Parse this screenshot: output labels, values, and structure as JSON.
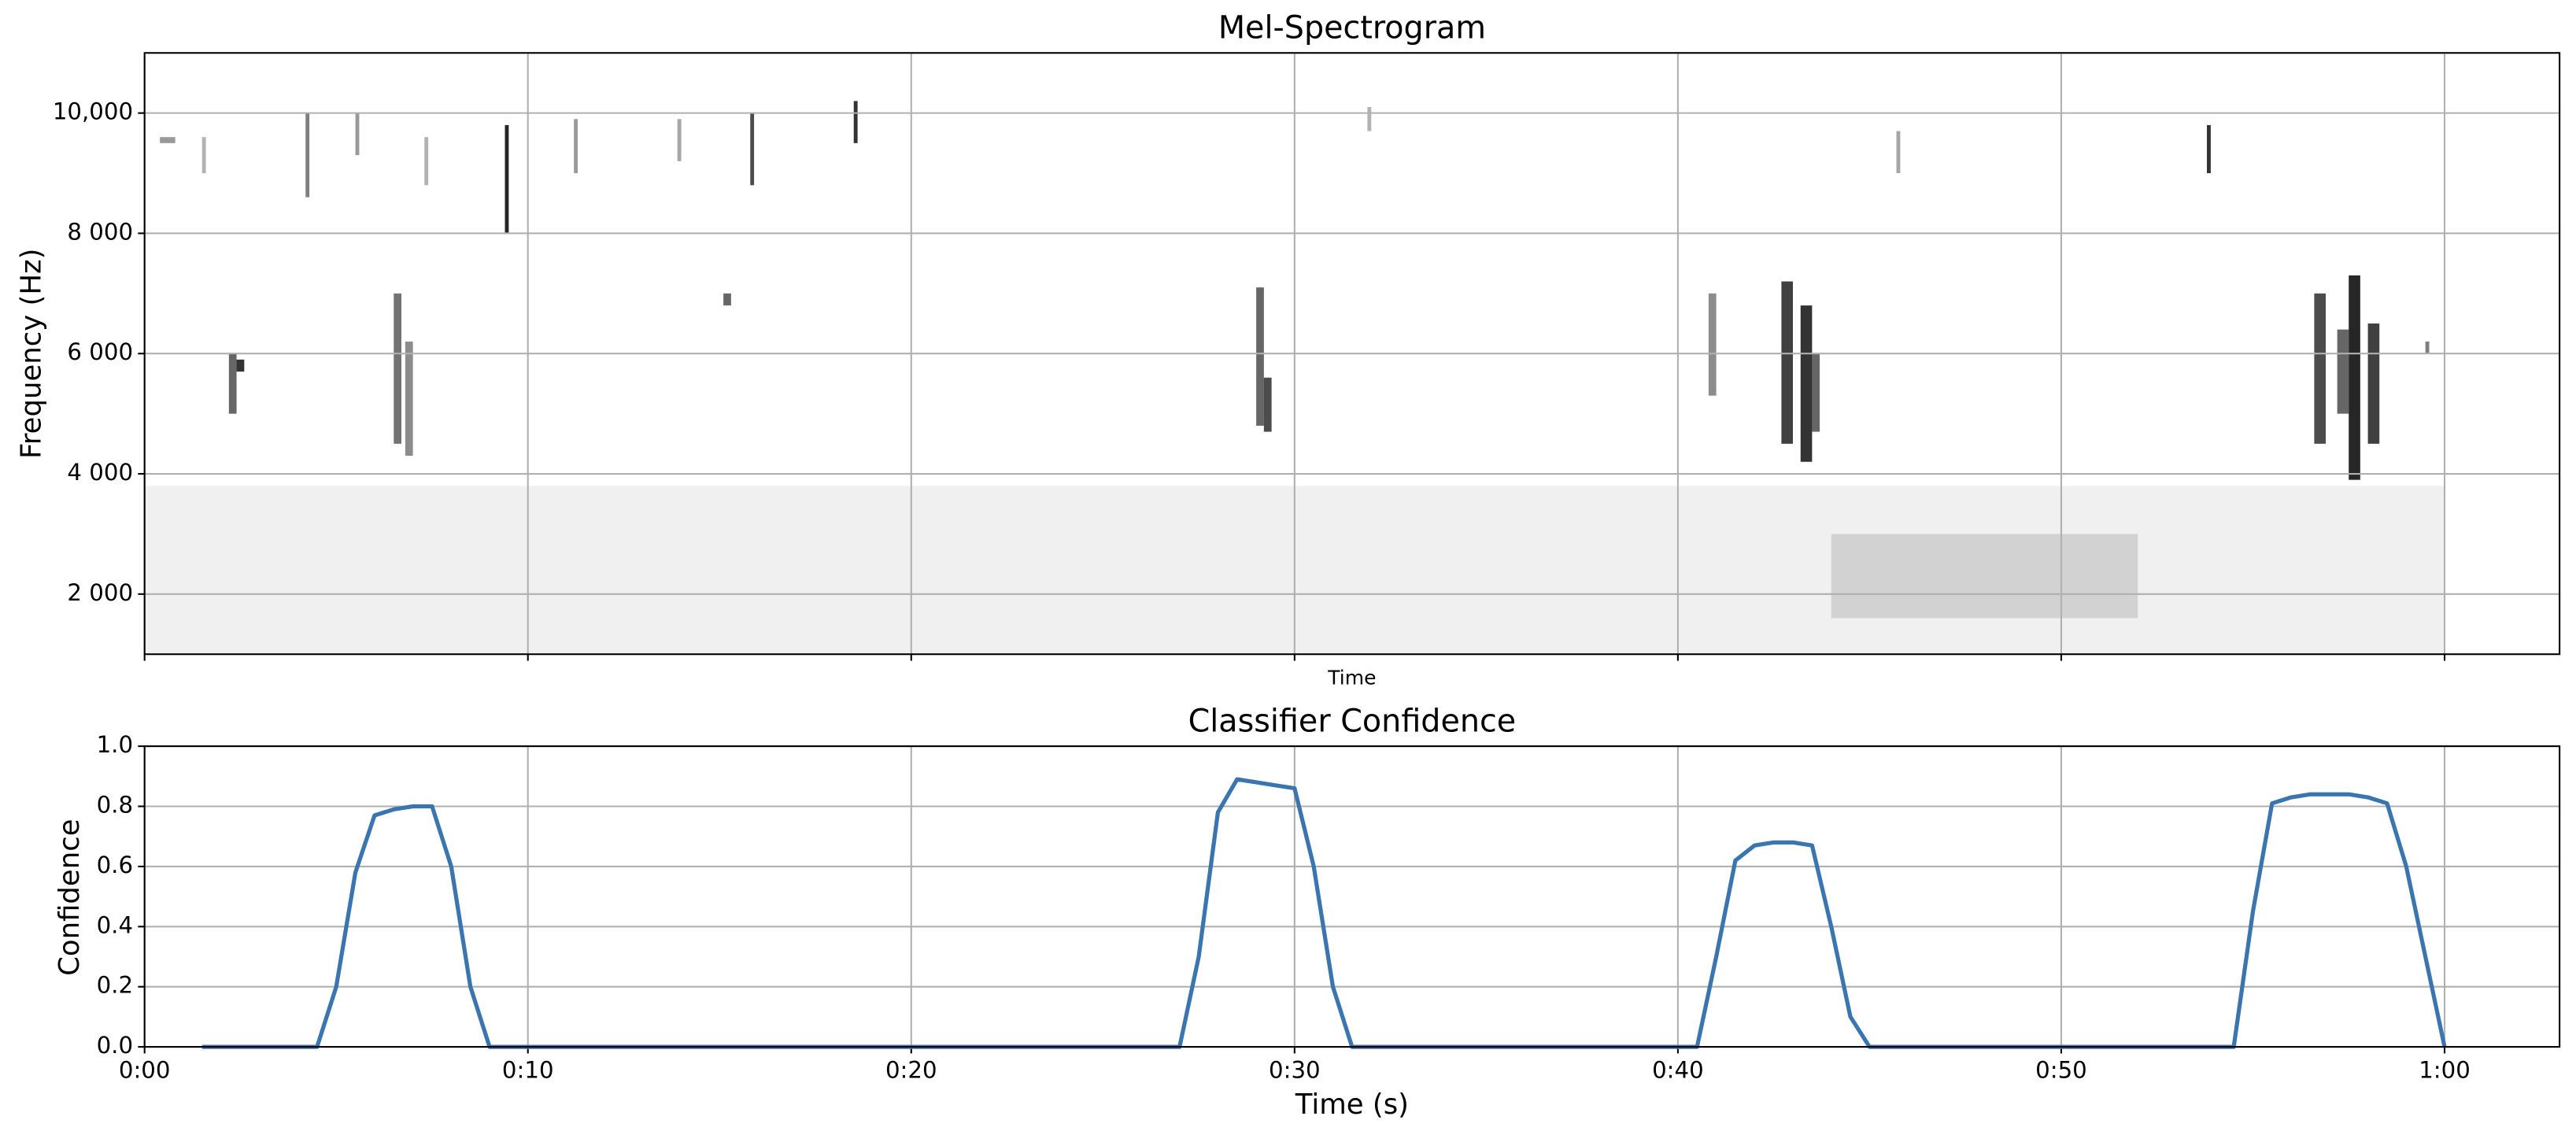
{
  "chart_data": [
    {
      "type": "spectrogram",
      "title": "Mel-Spectrogram",
      "xlabel": "Time",
      "ylabel": "Frequency (Hz)",
      "xlim": [
        0,
        63
      ],
      "xticks": [
        0,
        10,
        20,
        30,
        40,
        50,
        60
      ],
      "ylim": [
        1000,
        11000
      ],
      "yticks": [
        {
          "value": 2000,
          "label": "2 000"
        },
        {
          "value": 4000,
          "label": "4 000"
        },
        {
          "value": 6000,
          "label": "6 000"
        },
        {
          "value": 8000,
          "label": "8 000"
        },
        {
          "value": 10000,
          "label": "10,000"
        }
      ],
      "grid": true,
      "color": "#000000",
      "events": {
        "x0": [
          0,
          44,
          0.4,
          1.5,
          4.2,
          5.5,
          7.3,
          9.4,
          11.2,
          13.9,
          15.8,
          18.5,
          31.9,
          45.7,
          53.8,
          2.2,
          2.4,
          6.5,
          6.8,
          15.1,
          29.0,
          29.2,
          40.8,
          42.7,
          43.2,
          43.5,
          56.6,
          57.2,
          57.5,
          58.0,
          59.5
        ],
        "x1": [
          60,
          52,
          0.8,
          1.6,
          4.3,
          5.6,
          7.4,
          9.5,
          11.3,
          14.0,
          15.9,
          18.6,
          32.0,
          45.8,
          53.9,
          2.4,
          2.6,
          6.7,
          7.0,
          15.3,
          29.2,
          29.4,
          41.0,
          43.0,
          43.5,
          43.7,
          56.9,
          57.5,
          57.8,
          58.3,
          59.6
        ],
        "low": [
          1000,
          1600,
          9500,
          9000,
          8600,
          9300,
          8800,
          8000,
          9000,
          9200,
          8800,
          9500,
          9700,
          9000,
          9000,
          5000,
          5700,
          4500,
          4300,
          6800,
          4800,
          4700,
          5300,
          4500,
          4200,
          4700,
          4500,
          5000,
          3900,
          4500,
          6000
        ],
        "high": [
          3800,
          3000,
          9600,
          9600,
          10000,
          10000,
          9600,
          9800,
          9900,
          9900,
          10000,
          10200,
          10100,
          9700,
          9800,
          6000,
          5900,
          7000,
          6200,
          7000,
          7100,
          5600,
          7000,
          7200,
          6800,
          6000,
          7000,
          6400,
          7300,
          6500,
          6200
        ],
        "intensity": [
          0.06,
          0.12,
          0.4,
          0.3,
          0.5,
          0.4,
          0.3,
          0.85,
          0.4,
          0.35,
          0.7,
          0.8,
          0.3,
          0.35,
          0.8,
          0.6,
          0.8,
          0.55,
          0.45,
          0.6,
          0.6,
          0.7,
          0.45,
          0.75,
          0.8,
          0.6,
          0.7,
          0.6,
          0.85,
          0.75,
          0.5
        ]
      }
    },
    {
      "type": "line",
      "title": "Classifier Confidence",
      "xlabel": "Time (s)",
      "ylabel": "Confidence",
      "xlim": [
        0,
        63
      ],
      "xticks": [
        {
          "value": 0,
          "label": "0:00"
        },
        {
          "value": 10,
          "label": "0:10"
        },
        {
          "value": 20,
          "label": "0:20"
        },
        {
          "value": 30,
          "label": "0:30"
        },
        {
          "value": 40,
          "label": "0:40"
        },
        {
          "value": 50,
          "label": "0:50"
        },
        {
          "value": 60,
          "label": "1:00"
        }
      ],
      "ylim": [
        0,
        1
      ],
      "yticks": [
        {
          "value": 0,
          "label": "0.0"
        },
        {
          "value": 0.2,
          "label": "0.2"
        },
        {
          "value": 0.4,
          "label": "0.4"
        },
        {
          "value": 0.6,
          "label": "0.6"
        },
        {
          "value": 0.8,
          "label": "0.8"
        },
        {
          "value": 1,
          "label": "1.0"
        }
      ],
      "grid": true,
      "color": "#3a75b0",
      "x": [
        1.5,
        4.5,
        5,
        5.5,
        6,
        6.5,
        7,
        7.5,
        8,
        8.5,
        9,
        27,
        27.5,
        28,
        28.5,
        29,
        29.5,
        30,
        30.5,
        31,
        31.5,
        40.5,
        41,
        41.5,
        42,
        42.5,
        43,
        43.5,
        44,
        44.5,
        45,
        54.5,
        55,
        55.5,
        56,
        56.5,
        57,
        57.5,
        58,
        58.5,
        59,
        59.5,
        60
      ],
      "values": [
        0,
        0,
        0.2,
        0.58,
        0.77,
        0.79,
        0.8,
        0.8,
        0.6,
        0.2,
        0,
        0,
        0.3,
        0.78,
        0.89,
        0.88,
        0.87,
        0.86,
        0.6,
        0.2,
        0,
        0,
        0.3,
        0.62,
        0.67,
        0.68,
        0.68,
        0.67,
        0.4,
        0.1,
        0,
        0,
        0.45,
        0.81,
        0.83,
        0.84,
        0.84,
        0.84,
        0.83,
        0.81,
        0.6,
        0.3,
        0
      ]
    }
  ]
}
